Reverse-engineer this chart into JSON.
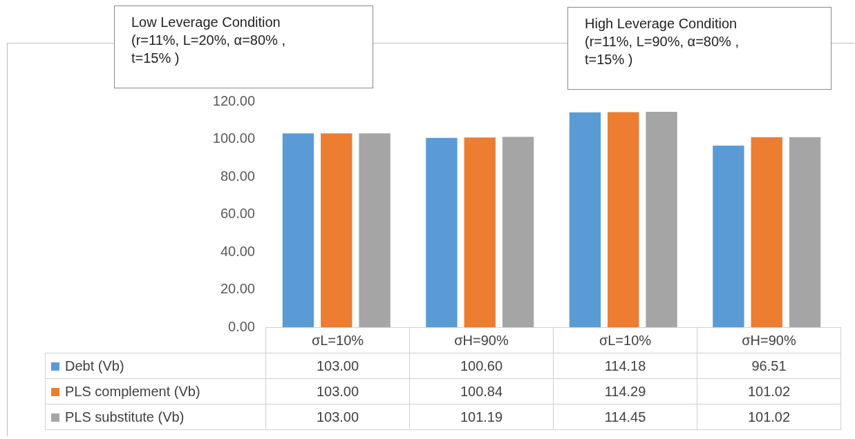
{
  "chart_data": {
    "type": "bar",
    "annotations": [
      "Low Leverage Condition\n(r=11%, L=20%, α=80% ,\nt=15% )",
      "High Leverage Condition\n(r=11%, L=90%, α=80% ,\nt=15% )"
    ],
    "categories": [
      "σL=10%",
      "σH=90%",
      "σL=10%",
      "σH=90%"
    ],
    "series": [
      {
        "name": "Debt (Vb)",
        "color": "#5b9bd5",
        "values": [
          103.0,
          100.6,
          114.18,
          96.51
        ],
        "value_labels": [
          "103.00",
          "100.60",
          "114.18",
          "96.51"
        ]
      },
      {
        "name": "PLS complement (Vb)",
        "color": "#ed7d31",
        "values": [
          103.0,
          100.84,
          114.29,
          101.02
        ],
        "value_labels": [
          "103.00",
          "100.84",
          "114.29",
          "101.02"
        ]
      },
      {
        "name": "PLS substitute (Vb)",
        "color": "#a5a5a5",
        "values": [
          103.0,
          101.19,
          114.45,
          101.02
        ],
        "value_labels": [
          "103.00",
          "101.19",
          "114.45",
          "101.02"
        ]
      }
    ],
    "ylim": [
      0,
      120
    ],
    "yticks": [
      {
        "value": 0,
        "label": "0.00"
      },
      {
        "value": 20,
        "label": "20.00"
      },
      {
        "value": 40,
        "label": "40.00"
      },
      {
        "value": 60,
        "label": "60.00"
      },
      {
        "value": 80,
        "label": "80.00"
      },
      {
        "value": 100,
        "label": "100.00"
      },
      {
        "value": 120,
        "label": "120.00"
      }
    ],
    "grid": false,
    "legend": "bottom"
  }
}
